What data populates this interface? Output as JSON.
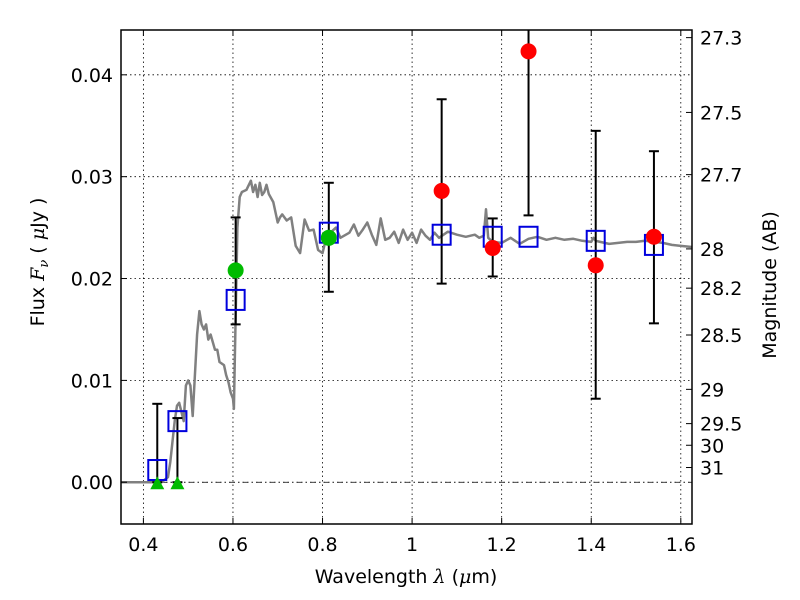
{
  "chart_data": {
    "type": "scatter",
    "title": "",
    "xlabel": "Wavelength  λ (μm)",
    "xlabel_parts": {
      "text": "Wavelength  ",
      "symbol": "λ",
      "unit_open": " (",
      "unit_mu": "μ",
      "unit_rest": "m)"
    },
    "ylabel": "Flux  Fν  ( μJy )",
    "ylabel_parts": {
      "text": "Flux  ",
      "symbol": "F",
      "sub": "ν",
      "unit_open": "  ( ",
      "unit_mu": "μ",
      "unit_rest": "Jy )"
    },
    "y2label": "Magnitude (AB)",
    "xlim": [
      0.35,
      1.625
    ],
    "ylim": [
      -0.0041,
      0.0444
    ],
    "grid": true,
    "xticks": [
      0.4,
      0.6,
      0.8,
      1.0,
      1.2,
      1.4,
      1.6
    ],
    "xtick_labels": [
      "0.4",
      "0.6",
      "0.8",
      "1",
      "1.2",
      "1.4",
      "1.6"
    ],
    "yticks": [
      0.0,
      0.01,
      0.02,
      0.03,
      0.04
    ],
    "ytick_labels": [
      "0.00",
      "0.01",
      "0.02",
      "0.03",
      "0.04"
    ],
    "y2ticks_mag": [
      27.3,
      27.5,
      27.7,
      28,
      28.2,
      28.5,
      29,
      29.5,
      30,
      31
    ],
    "y2tick_labels": [
      "27.3",
      "27.5",
      "27.7",
      "28",
      "28.2",
      "28.5",
      "29",
      "29.5",
      "30",
      "31"
    ],
    "zero_line": 0.0,
    "colors": {
      "spectrum": "#808080",
      "model_squares": "#0000dd",
      "detections_red": "#ff0000",
      "detections_green": "#00bb00",
      "upper_limits": "#00bb00",
      "errorbar": "#000000"
    },
    "series": [
      {
        "name": "model spectrum",
        "kind": "line",
        "x": [
          0.35,
          0.44,
          0.455,
          0.46,
          0.47,
          0.475,
          0.48,
          0.49,
          0.495,
          0.5,
          0.505,
          0.51,
          0.52,
          0.525,
          0.53,
          0.535,
          0.54,
          0.545,
          0.55,
          0.56,
          0.565,
          0.57,
          0.58,
          0.585,
          0.59,
          0.595,
          0.6,
          0.602,
          0.604,
          0.61,
          0.615,
          0.62,
          0.63,
          0.64,
          0.645,
          0.65,
          0.655,
          0.66,
          0.665,
          0.67,
          0.675,
          0.68,
          0.69,
          0.7,
          0.705,
          0.71,
          0.72,
          0.73,
          0.74,
          0.75,
          0.76,
          0.77,
          0.78,
          0.79,
          0.8,
          0.81,
          0.82,
          0.83,
          0.84,
          0.86,
          0.87,
          0.88,
          0.89,
          0.9,
          0.91,
          0.92,
          0.93,
          0.94,
          0.95,
          0.96,
          0.97,
          0.98,
          0.99,
          1.0,
          1.01,
          1.02,
          1.03,
          1.04,
          1.05,
          1.06,
          1.08,
          1.1,
          1.12,
          1.14,
          1.15,
          1.16,
          1.165,
          1.17,
          1.18,
          1.2,
          1.22,
          1.24,
          1.26,
          1.28,
          1.3,
          1.32,
          1.34,
          1.36,
          1.38,
          1.4,
          1.405,
          1.41,
          1.42,
          1.44,
          1.46,
          1.48,
          1.5,
          1.52,
          1.54,
          1.56,
          1.58,
          1.6,
          1.625
        ],
        "y": [
          0.0,
          0.0,
          0.0005,
          0.002,
          0.006,
          0.0075,
          0.0078,
          0.006,
          0.0095,
          0.01,
          0.0095,
          0.0065,
          0.0145,
          0.0168,
          0.0155,
          0.015,
          0.0155,
          0.014,
          0.0145,
          0.013,
          0.013,
          0.0118,
          0.0115,
          0.0105,
          0.0098,
          0.0088,
          0.0082,
          0.0072,
          0.012,
          0.025,
          0.028,
          0.0285,
          0.0287,
          0.0296,
          0.0285,
          0.0292,
          0.028,
          0.0294,
          0.0282,
          0.0285,
          0.0292,
          0.0283,
          0.0275,
          0.0255,
          0.026,
          0.0263,
          0.0257,
          0.026,
          0.0232,
          0.0225,
          0.0258,
          0.0247,
          0.0248,
          0.0228,
          0.0225,
          0.0243,
          0.0246,
          0.025,
          0.024,
          0.0245,
          0.0253,
          0.0242,
          0.0248,
          0.0255,
          0.0243,
          0.0233,
          0.0259,
          0.0238,
          0.024,
          0.0246,
          0.0235,
          0.0248,
          0.0238,
          0.0245,
          0.0235,
          0.0248,
          0.0242,
          0.0238,
          0.0245,
          0.024,
          0.0246,
          0.0243,
          0.0241,
          0.0243,
          0.024,
          0.0242,
          0.0268,
          0.024,
          0.0236,
          0.0235,
          0.024,
          0.0234,
          0.0239,
          0.0241,
          0.0238,
          0.024,
          0.0238,
          0.0239,
          0.0237,
          0.0236,
          0.024,
          0.0237,
          0.0236,
          0.0234,
          0.0235,
          0.0236,
          0.0236,
          0.0237,
          0.0236,
          0.0235,
          0.0233,
          0.0232,
          0.0231
        ]
      },
      {
        "name": "model photometry",
        "kind": "open-square",
        "x": [
          0.431,
          0.476,
          0.606,
          0.814,
          1.066,
          1.18,
          1.26,
          1.41,
          1.54
        ],
        "y": [
          0.0012,
          0.006,
          0.0179,
          0.0245,
          0.0243,
          0.0241,
          0.0241,
          0.0237,
          0.0233
        ]
      },
      {
        "name": "observed (green detections)",
        "kind": "filled-circle",
        "color_key": "detections_green",
        "x": [
          0.606,
          0.814
        ],
        "y": [
          0.0208,
          0.024
        ]
      },
      {
        "name": "observed (red detections)",
        "kind": "filled-circle",
        "color_key": "detections_red",
        "x": [
          1.066,
          1.18,
          1.26,
          1.41,
          1.54
        ],
        "y": [
          0.0286,
          0.023,
          0.0423,
          0.0213,
          0.0241
        ]
      },
      {
        "name": "non-detections",
        "kind": "triangle-up",
        "color_key": "upper_limits",
        "x": [
          0.431,
          0.476
        ],
        "y": [
          0.0,
          0.0
        ]
      },
      {
        "name": "error bars",
        "kind": "errorbar",
        "x": [
          0.431,
          0.476,
          0.606,
          0.814,
          1.066,
          1.18,
          1.26,
          1.41,
          1.54
        ],
        "low": [
          0.0,
          0.0,
          0.0155,
          0.0187,
          0.0195,
          0.0202,
          0.0262,
          0.0082,
          0.0156
        ],
        "high": [
          0.0077,
          0.0063,
          0.026,
          0.0294,
          0.0376,
          0.0259,
          0.046,
          0.0345,
          0.0325
        ]
      }
    ]
  }
}
